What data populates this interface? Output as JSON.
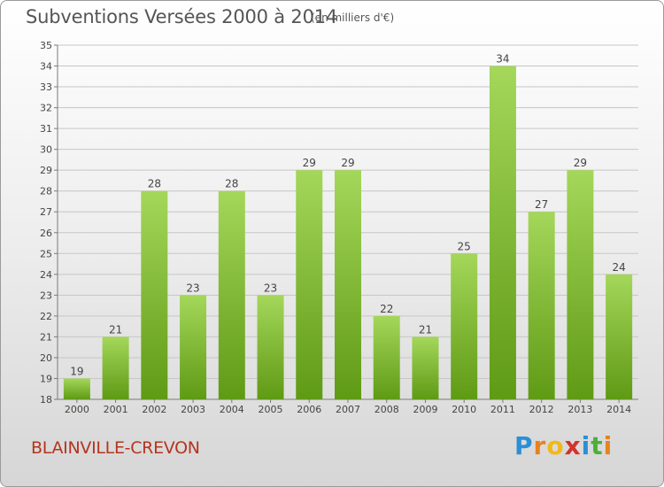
{
  "header": {
    "title": "Subventions Versées 2000 à 2014",
    "unit": "(en milliers d'€)"
  },
  "footer": {
    "commune": "BLAINVILLE-CREVON",
    "logo_letters": [
      "P",
      "r",
      "o",
      "x",
      "i",
      "t",
      "i"
    ],
    "logo_colors": [
      "#2a8fd6",
      "#e8821e",
      "#f2b818",
      "#d4322c",
      "#2a8fd6",
      "#4fae3a",
      "#e8821e"
    ]
  },
  "colors": {
    "bar_light": "#a4d75a",
    "bar_dark": "#5f9a15",
    "grid": "#c6c6c6",
    "axis": "#7a7a7a"
  },
  "chart_data": {
    "type": "bar",
    "title": "Subventions Versées 2000 à 2014",
    "xlabel": "",
    "ylabel": "",
    "categories": [
      "2000",
      "2001",
      "2002",
      "2003",
      "2004",
      "2005",
      "2006",
      "2007",
      "2008",
      "2009",
      "2010",
      "2011",
      "2012",
      "2013",
      "2014"
    ],
    "values": [
      19,
      21,
      28,
      23,
      28,
      23,
      29,
      29,
      22,
      21,
      25,
      34,
      27,
      29,
      24
    ],
    "ylim": [
      18,
      35
    ],
    "yticks": [
      18,
      19,
      20,
      21,
      22,
      23,
      24,
      25,
      26,
      27,
      28,
      29,
      30,
      31,
      32,
      33,
      34,
      35
    ],
    "grid": true,
    "data_labels": true
  }
}
